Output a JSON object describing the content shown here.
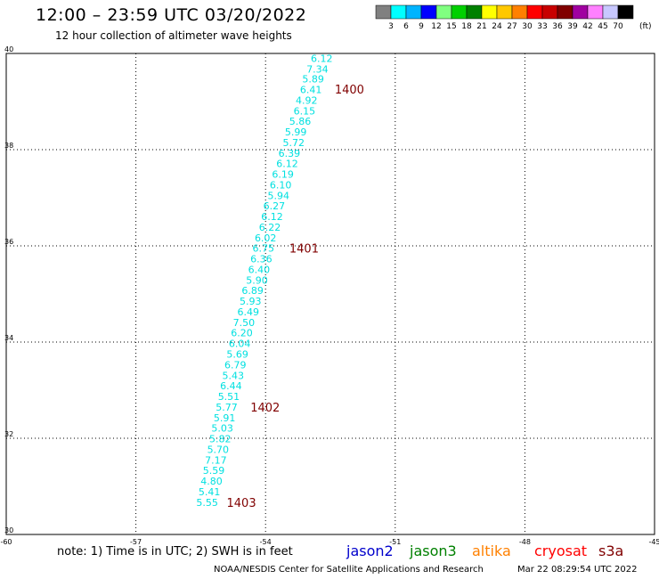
{
  "header": {
    "title": "12:00 – 23:59 UTC 03/20/2022",
    "subtitle": "12 hour collection of altimeter wave heights"
  },
  "colorbar": {
    "colors": [
      "#808080",
      "#00ffff",
      "#00b4ff",
      "#0000ff",
      "#80ff80",
      "#00d000",
      "#008000",
      "#ffff00",
      "#ffc800",
      "#ff8000",
      "#ff0000",
      "#c80000",
      "#800000",
      "#a000a0",
      "#ff80ff",
      "#c8c8ff",
      "#000000"
    ],
    "labels": [
      "3",
      "6",
      "9",
      "12",
      "15",
      "18",
      "21",
      "24",
      "27",
      "30",
      "33",
      "36",
      "39",
      "42",
      "45",
      "70"
    ],
    "unit": "(ft)"
  },
  "chart_data": {
    "type": "scatter",
    "xlim": [
      -60,
      -45
    ],
    "ylim": [
      30,
      40
    ],
    "x_ticks": [
      "-60",
      "-57",
      "-54",
      "-51",
      "-48",
      "-45"
    ],
    "y_ticks": [
      "30",
      "32",
      "34",
      "36",
      "38",
      "40"
    ],
    "grid": true,
    "point_color": "#00e0e0",
    "series": [
      {
        "values": [
          {
            "x": -52.7,
            "y": 39.9,
            "v": "6.12"
          },
          {
            "x": -52.8,
            "y": 39.68,
            "v": "7.34"
          },
          {
            "x": -52.9,
            "y": 39.47,
            "v": "5.89"
          },
          {
            "x": -52.95,
            "y": 39.25,
            "v": "6.41"
          },
          {
            "x": -53.05,
            "y": 39.03,
            "v": "4.92"
          },
          {
            "x": -53.1,
            "y": 38.81,
            "v": "6.15"
          },
          {
            "x": -53.2,
            "y": 38.59,
            "v": "5.86"
          },
          {
            "x": -53.3,
            "y": 38.37,
            "v": "5.99"
          },
          {
            "x": -53.35,
            "y": 38.15,
            "v": "5.72"
          },
          {
            "x": -53.45,
            "y": 37.93,
            "v": "6.39"
          },
          {
            "x": -53.5,
            "y": 37.71,
            "v": "6.12"
          },
          {
            "x": -53.6,
            "y": 37.49,
            "v": "6.19"
          },
          {
            "x": -53.65,
            "y": 37.27,
            "v": "6.10"
          },
          {
            "x": -53.7,
            "y": 37.05,
            "v": "5.94"
          },
          {
            "x": -53.8,
            "y": 36.83,
            "v": "6.27"
          },
          {
            "x": -53.85,
            "y": 36.61,
            "v": "6.12"
          },
          {
            "x": -53.9,
            "y": 36.39,
            "v": "6.22"
          },
          {
            "x": -54.0,
            "y": 36.17,
            "v": "6.02"
          },
          {
            "x": -54.05,
            "y": 35.95,
            "v": "6.75"
          },
          {
            "x": -54.1,
            "y": 35.73,
            "v": "6.36"
          },
          {
            "x": -54.15,
            "y": 35.51,
            "v": "6.40"
          },
          {
            "x": -54.2,
            "y": 35.29,
            "v": "5.90"
          },
          {
            "x": -54.3,
            "y": 35.07,
            "v": "6.89"
          },
          {
            "x": -54.35,
            "y": 34.85,
            "v": "5.93"
          },
          {
            "x": -54.4,
            "y": 34.63,
            "v": "6.49"
          },
          {
            "x": -54.5,
            "y": 34.41,
            "v": "7.50"
          },
          {
            "x": -54.55,
            "y": 34.19,
            "v": "6.20"
          },
          {
            "x": -54.6,
            "y": 33.97,
            "v": "6.04"
          },
          {
            "x": -54.65,
            "y": 33.75,
            "v": "5.69"
          },
          {
            "x": -54.7,
            "y": 33.53,
            "v": "6.79"
          },
          {
            "x": -54.75,
            "y": 33.31,
            "v": "5.43"
          },
          {
            "x": -54.8,
            "y": 33.09,
            "v": "6.44"
          },
          {
            "x": -54.85,
            "y": 32.87,
            "v": "5.51"
          },
          {
            "x": -54.9,
            "y": 32.65,
            "v": "5.77"
          },
          {
            "x": -54.95,
            "y": 32.43,
            "v": "5.91"
          },
          {
            "x": -55.0,
            "y": 32.21,
            "v": "5.03"
          },
          {
            "x": -55.05,
            "y": 31.99,
            "v": "5.82"
          },
          {
            "x": -55.1,
            "y": 31.77,
            "v": "5.70"
          },
          {
            "x": -55.15,
            "y": 31.55,
            "v": "7.17"
          },
          {
            "x": -55.2,
            "y": 31.33,
            "v": "5.59"
          },
          {
            "x": -55.25,
            "y": 31.11,
            "v": "4.80"
          },
          {
            "x": -55.3,
            "y": 30.89,
            "v": "5.41"
          },
          {
            "x": -55.35,
            "y": 30.67,
            "v": "5.55"
          }
        ]
      }
    ],
    "annotations": [
      {
        "text": "1400",
        "x": -52.4,
        "y": 39.26
      },
      {
        "text": "1401",
        "x": -53.45,
        "y": 35.95
      },
      {
        "text": "1402",
        "x": -54.35,
        "y": 32.65
      },
      {
        "text": "1403",
        "x": -54.9,
        "y": 30.67
      }
    ],
    "annotation_color": "#800000"
  },
  "footer": {
    "note": "note: 1) Time is in UTC; 2) SWH is in feet",
    "satellites": [
      {
        "label": "jason2",
        "color": "#0000cc"
      },
      {
        "label": "jason3",
        "color": "#008000"
      },
      {
        "label": "altika",
        "color": "#ff8000"
      },
      {
        "label": "cryosat",
        "color": "#ff0000"
      },
      {
        "label": "s3a",
        "color": "#800000"
      }
    ],
    "credit_org": "NOAA/NESDIS Center for Satellite Applications and Research",
    "credit_time": "Mar 22 08:29:54 UTC 2022"
  }
}
